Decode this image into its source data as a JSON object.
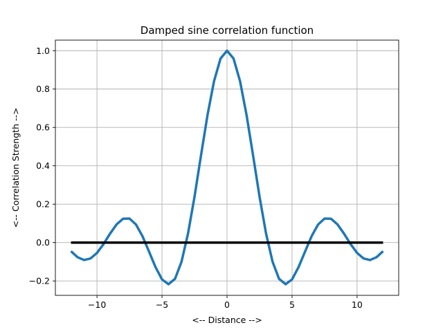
{
  "chart_data": {
    "type": "line",
    "title": "Damped sine correlation function",
    "xlabel": "<-- Distance -->",
    "ylabel": "<-- Correlation Strength -->",
    "xlim": [
      -13.2,
      13.2
    ],
    "ylim": [
      -0.275,
      1.055
    ],
    "grid": true,
    "xticks": [
      -10,
      -5,
      0,
      5,
      10
    ],
    "xtick_labels": [
      "−10",
      "−5",
      "0",
      "5",
      "10"
    ],
    "yticks": [
      -0.2,
      0.0,
      0.2,
      0.4,
      0.6,
      0.8,
      1.0
    ],
    "ytick_labels": [
      "−0.2",
      "0.0",
      "0.2",
      "0.4",
      "0.6",
      "0.8",
      "1.0"
    ],
    "series": [
      {
        "color": "#1f77b4",
        "x": [
          -12,
          -11.5,
          -11,
          -10.5,
          -10,
          -9.5,
          -9,
          -8.5,
          -8,
          -7.5,
          -7,
          -6.5,
          -6,
          -5.5,
          -5,
          -4.5,
          -4,
          -3.5,
          -3,
          -2.5,
          -2,
          -1.5,
          -1,
          -0.5,
          0,
          0.5,
          1,
          1.5,
          2,
          2.5,
          3,
          3.5,
          4,
          4.5,
          5,
          5.5,
          6,
          6.5,
          7,
          7.5,
          8,
          8.5,
          9,
          9.5,
          10,
          10.5,
          11,
          11.5,
          12
        ],
        "y": [
          -0.045,
          -0.076,
          -0.091,
          -0.083,
          -0.054,
          -0.008,
          0.046,
          0.094,
          0.124,
          0.125,
          0.094,
          0.033,
          -0.047,
          -0.128,
          -0.192,
          -0.217,
          -0.189,
          -0.1,
          0.047,
          0.239,
          0.455,
          0.665,
          0.841,
          0.959,
          1.0,
          0.959,
          0.841,
          0.665,
          0.455,
          0.239,
          0.047,
          -0.1,
          -0.189,
          -0.217,
          -0.192,
          -0.128,
          -0.047,
          0.033,
          0.094,
          0.125,
          0.124,
          0.094,
          0.046,
          -0.008,
          -0.054,
          -0.083,
          -0.091,
          -0.076,
          -0.045
        ]
      },
      {
        "color": "#000000",
        "x": [
          -12,
          12
        ],
        "y": [
          0,
          0
        ]
      }
    ]
  }
}
